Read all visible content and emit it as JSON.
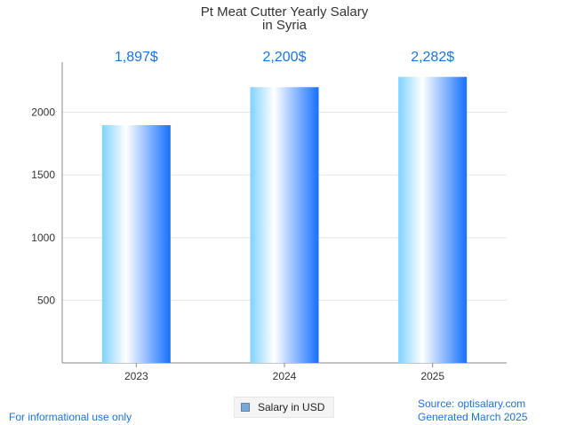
{
  "chart_data": {
    "type": "bar",
    "title_lines": [
      "Pt Meat Cutter Yearly Salary",
      "in Syria"
    ],
    "categories": [
      "2023",
      "2024",
      "2025"
    ],
    "series": [
      {
        "name": "Salary in USD",
        "values": [
          1897,
          2200,
          2282
        ],
        "labels": [
          "1,897$",
          "2,200$",
          "2,282$"
        ]
      }
    ],
    "yticks": [
      500,
      1000,
      1500,
      2000
    ],
    "ylim": [
      0,
      2400
    ],
    "grid": true,
    "legend_position": "bottom-center"
  },
  "colors": {
    "bar_gradient_stops": [
      "#7fd2ff",
      "#ffffff",
      "#1670ff"
    ],
    "data_label": "#1a73e8",
    "footer_text": "#1a73e8",
    "grid": "#e6e6e6",
    "axis": "#888888",
    "legend_swatch": "#7aa6d8"
  },
  "footer": {
    "disclaimer": "For informational use only",
    "source": "Source: optisalary.com",
    "generated": "Generated March 2025"
  }
}
